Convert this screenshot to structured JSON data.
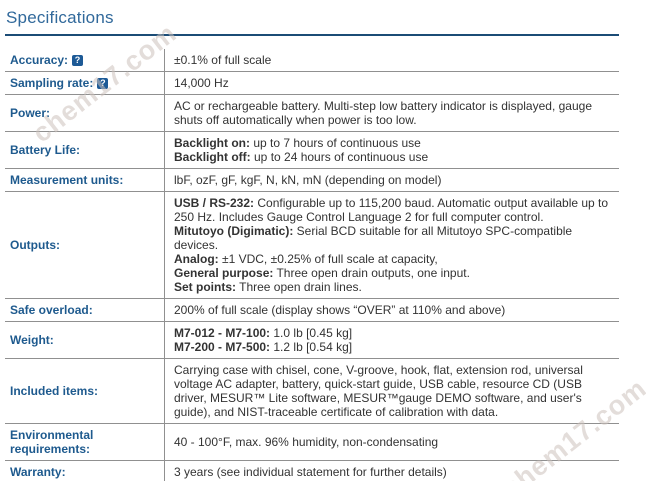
{
  "title": "Specifications",
  "watermark": {
    "text": "chem17.com"
  },
  "colors": {
    "title": "#31699b",
    "title_underline": "#1b4c76",
    "label": "#1e5a8e",
    "value": "#333333",
    "row_border": "#909090",
    "bottom_border": "#111111",
    "help_icon_bg": "#1d5a96"
  },
  "help_icon_char": "?",
  "rows": [
    {
      "label": "Accuracy:",
      "help": true,
      "lines": [
        {
          "bold": "",
          "text": "±0.1% of full scale"
        }
      ]
    },
    {
      "label": "Sampling rate:",
      "help": true,
      "lines": [
        {
          "bold": "",
          "text": "14,000 Hz"
        }
      ]
    },
    {
      "label": "Power:",
      "help": false,
      "lines": [
        {
          "bold": "",
          "text": "AC or rechargeable battery. Multi-step low battery indicator is displayed, gauge shuts off automatically when power is too low."
        }
      ]
    },
    {
      "label": "Battery Life:",
      "help": false,
      "lines": [
        {
          "bold": "Backlight on:",
          "text": " up to 7 hours of continuous use"
        },
        {
          "bold": "Backlight off:",
          "text": " up to 24 hours of continuous use"
        }
      ]
    },
    {
      "label": "Measurement units:",
      "help": false,
      "lines": [
        {
          "bold": "",
          "text": "lbF, ozF, gF, kgF, N, kN, mN (depending on model)"
        }
      ]
    },
    {
      "label": "Outputs:",
      "help": false,
      "lines": [
        {
          "bold": "USB / RS-232:",
          "text": " Configurable up to 115,200 baud. Automatic output available up to 250 Hz. Includes Gauge Control Language 2 for full computer control."
        },
        {
          "bold": "Mitutoyo (Digimatic):",
          "text": " Serial BCD suitable for all Mitutoyo SPC-compatible devices."
        },
        {
          "bold": "Analog:",
          "text": " ±1 VDC, ±0.25% of full scale at capacity,"
        },
        {
          "bold": "General purpose:",
          "text": " Three open drain outputs, one input."
        },
        {
          "bold": "Set points:",
          "text": " Three open drain lines."
        }
      ]
    },
    {
      "label": "Safe overload:",
      "help": false,
      "lines": [
        {
          "bold": "",
          "text": "200% of full scale (display shows “OVER” at 110% and above)"
        }
      ]
    },
    {
      "label": "Weight:",
      "help": false,
      "lines": [
        {
          "bold": "M7-012 - M7-100:",
          "text": " 1.0 lb [0.45 kg]"
        },
        {
          "bold": "M7-200 - M7-500:",
          "text": " 1.2 lb [0.54 kg]"
        }
      ]
    },
    {
      "label": "Included items:",
      "help": false,
      "lines": [
        {
          "bold": "",
          "text": "Carrying case with chisel, cone, V-groove, hook, flat, extension rod, universal voltage AC adapter, battery, quick-start guide, USB cable, resource CD (USB driver, MESUR™ Lite software, MESUR™gauge DEMO software, and user's guide), and NIST-traceable certificate of calibration with data."
        }
      ]
    },
    {
      "label": "Environmental requirements:",
      "help": false,
      "lines": [
        {
          "bold": "",
          "text": "40 - 100°F, max. 96% humidity, non-condensating"
        }
      ]
    },
    {
      "label": "Warranty:",
      "help": false,
      "lines": [
        {
          "bold": "",
          "text": "3 years (see individual statement for further details)"
        }
      ]
    }
  ]
}
